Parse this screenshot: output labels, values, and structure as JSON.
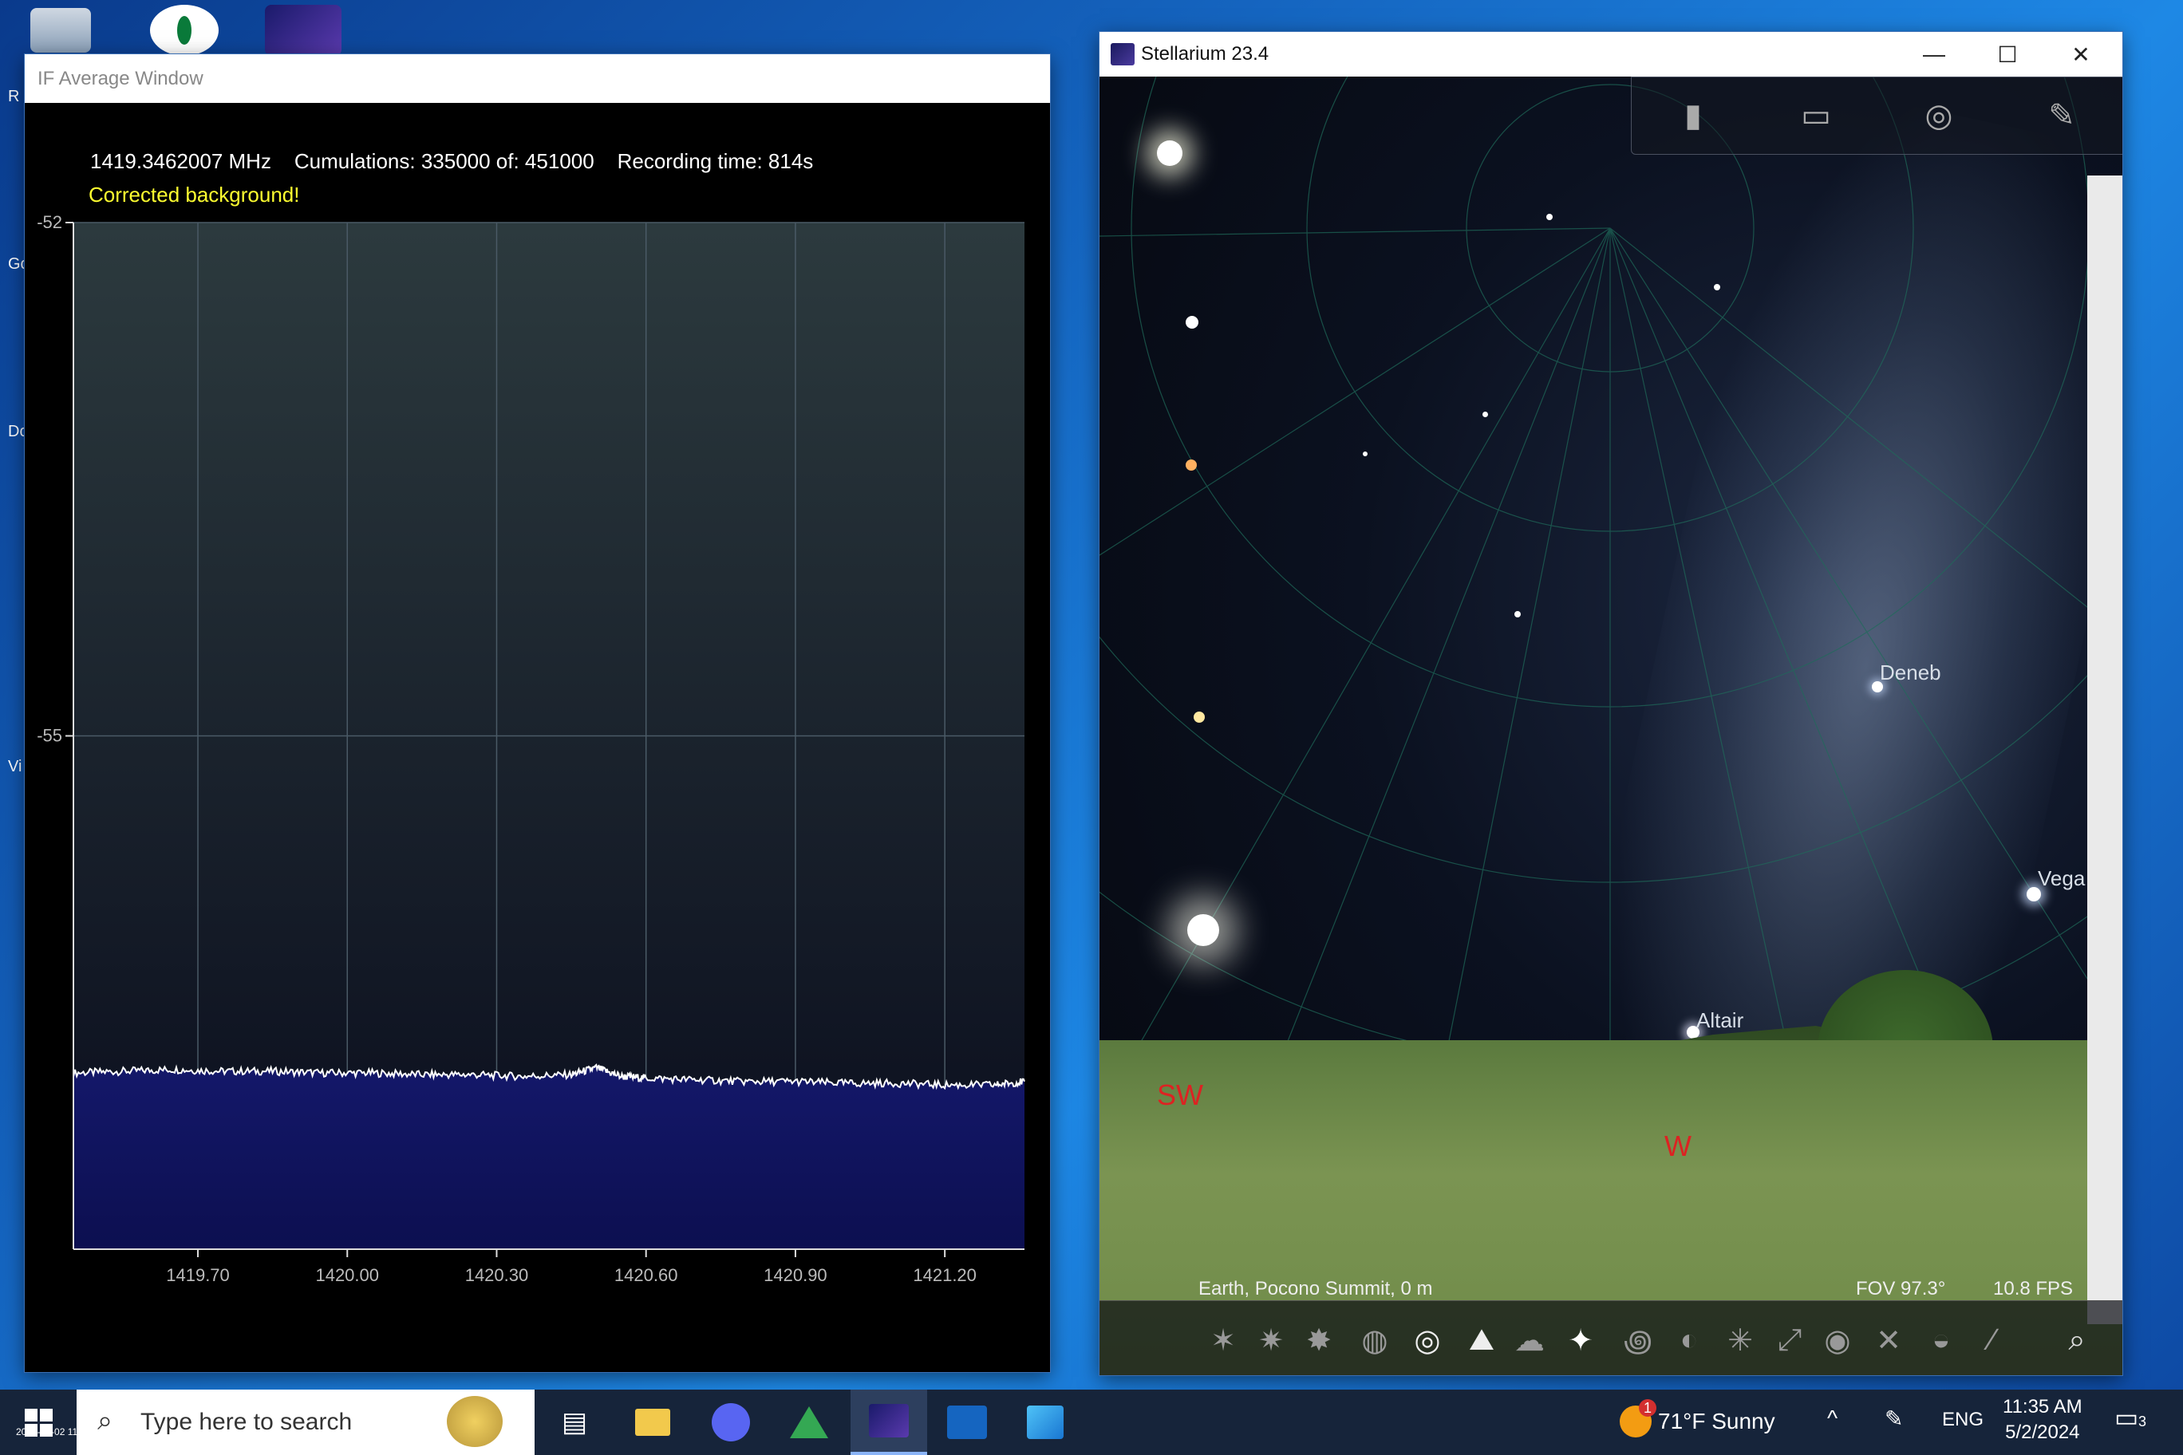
{
  "desktop": {
    "edge_letters": [
      "R",
      "Gc",
      "Dc",
      "Vi"
    ]
  },
  "if_window": {
    "title": "IF Average Window",
    "frequency": "1419.3462007 MHz",
    "cumulations": "Cumulations: 335000 of: 451000",
    "recording_time": "Recording time: 814s",
    "status": "Corrected background!"
  },
  "chart_data": {
    "type": "area",
    "title": "",
    "xlabel": "",
    "ylabel": "",
    "x_ticks": [
      "1419.70",
      "1420.00",
      "1420.30",
      "1420.60",
      "1420.90",
      "1421.20"
    ],
    "y_ticks": [
      "-52",
      "-55"
    ],
    "xlim": [
      1419.45,
      1421.36
    ],
    "ylim": [
      -58.0,
      -52.0
    ],
    "x": [
      1419.45,
      1419.55,
      1419.65,
      1419.75,
      1419.85,
      1419.95,
      1420.05,
      1420.15,
      1420.25,
      1420.35,
      1420.45,
      1420.5,
      1420.55,
      1420.6,
      1420.7,
      1420.8,
      1420.9,
      1421.0,
      1421.1,
      1421.2,
      1421.3,
      1421.36
    ],
    "values": [
      -56.97,
      -56.96,
      -56.95,
      -56.96,
      -56.96,
      -56.97,
      -56.97,
      -56.98,
      -56.98,
      -56.99,
      -56.98,
      -56.94,
      -56.99,
      -57.0,
      -57.01,
      -57.02,
      -57.02,
      -57.03,
      -57.03,
      -57.04,
      -57.04,
      -57.02
    ],
    "line_color": "#ffffff",
    "fill_color": "#14186a",
    "background_top": "#2c3a3e",
    "background_bottom": "#090c1c",
    "grid": true
  },
  "stellarium": {
    "title": "Stellarium 23.4",
    "window_buttons": {
      "minimize": "—",
      "maximize": "☐",
      "close": "✕"
    },
    "labels": {
      "deneb": "Deneb",
      "vega": "Vega",
      "altair": "Altair"
    },
    "cardinals": {
      "sw": "SW",
      "w": "W"
    },
    "location": "Earth, Pocono Summit, 0 m",
    "fov": "FOV 97.3°",
    "fps": "10.8 FPS"
  },
  "taskbar": {
    "search_placeholder": "Type here to search",
    "weather": "71°F  Sunny",
    "language": "ENG",
    "time": "11:35 AM",
    "date": "5/2/2024",
    "notification_count": "3",
    "weather_badge": "1",
    "corner_timestamp": "2024-05-02 11:35:490.03"
  }
}
